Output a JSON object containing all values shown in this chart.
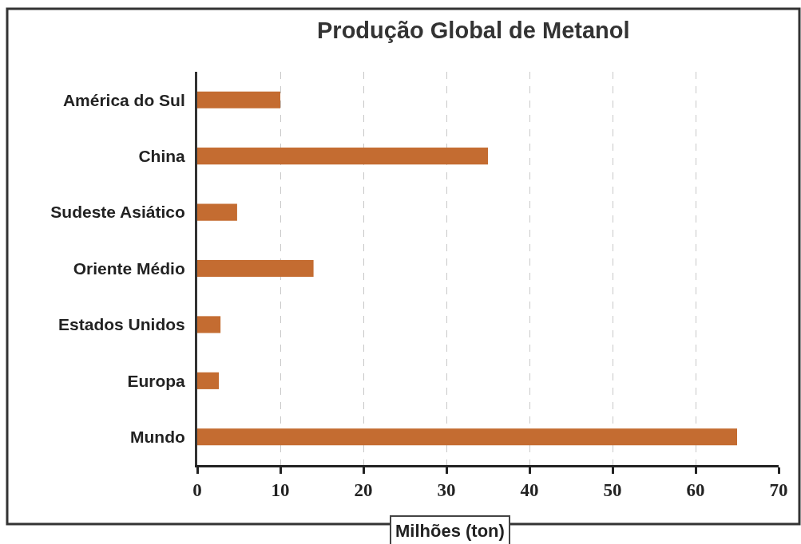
{
  "chart_data": {
    "type": "bar",
    "orientation": "horizontal",
    "title": "Produção Global de Metanol",
    "xlabel": "Milhões (ton)",
    "categories": [
      "América do Sul",
      "China",
      "Sudeste Asiático",
      "Oriente Médio",
      "Estados Unidos",
      "Europa",
      "Mundo"
    ],
    "values": [
      10,
      35,
      4.8,
      14,
      2.8,
      2.6,
      65
    ],
    "color": "#c46c31",
    "xlim": [
      0,
      70
    ],
    "xticks": [
      0,
      10,
      20,
      30,
      40,
      50,
      60,
      70
    ],
    "grid": "x"
  }
}
